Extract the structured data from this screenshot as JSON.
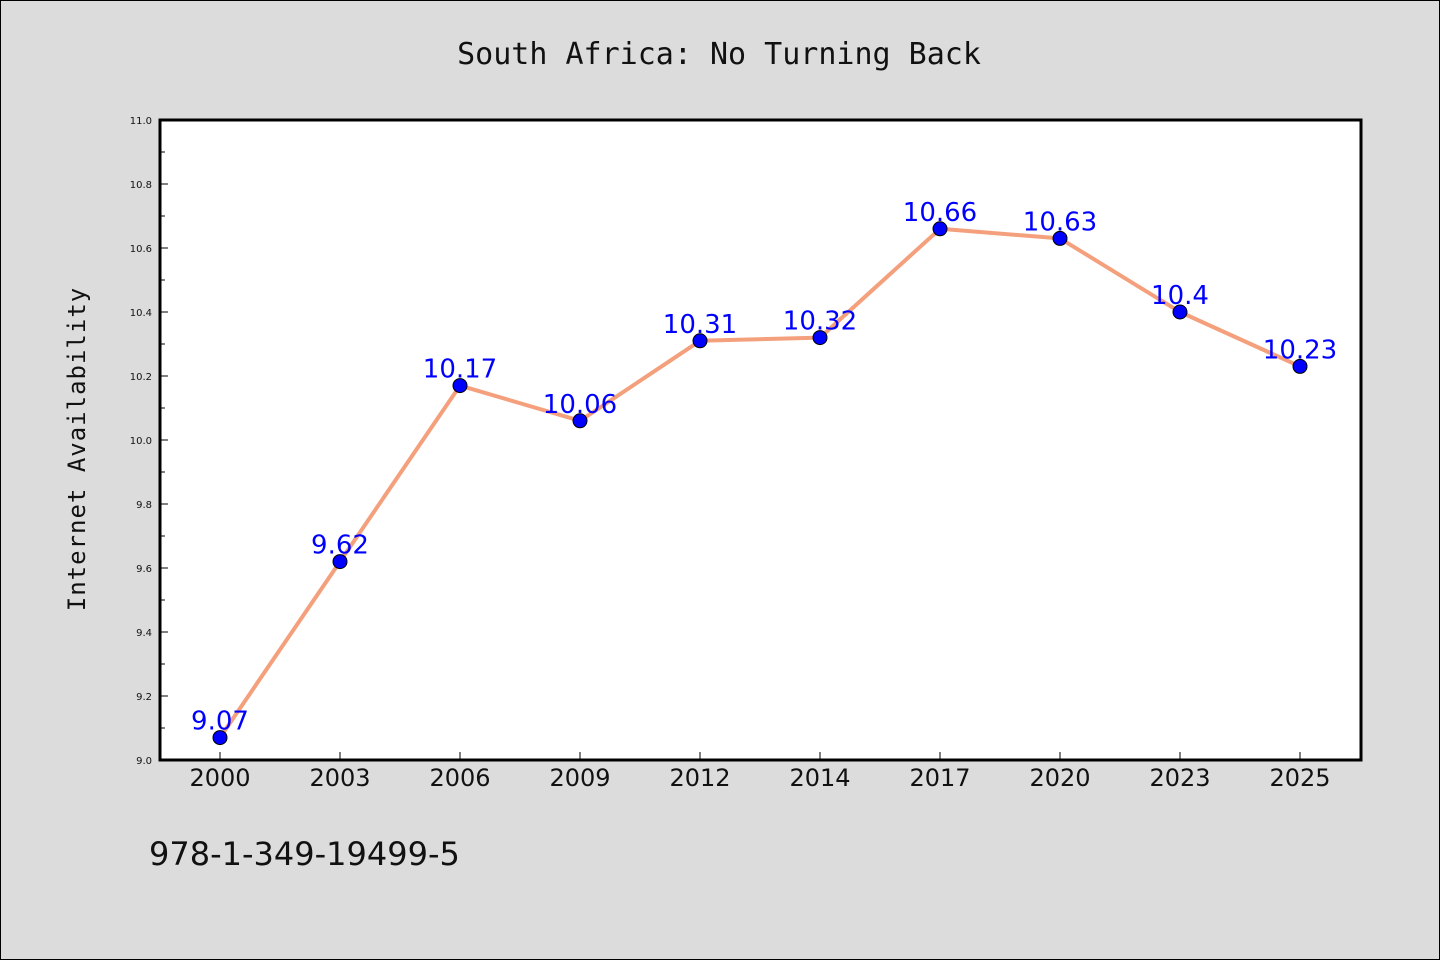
{
  "chart_data": {
    "type": "line",
    "title": "South Africa: No Turning Back",
    "ylabel": "Internet Availability",
    "xlabel": "",
    "categories": [
      "2000",
      "2003",
      "2006",
      "2009",
      "2012",
      "2014",
      "2017",
      "2020",
      "2023",
      "2025"
    ],
    "series": [
      {
        "values": [
          9.07,
          9.62,
          10.17,
          10.06,
          10.31,
          10.32,
          10.66,
          10.63,
          10.4,
          10.23
        ]
      }
    ],
    "data_labels": [
      "9.07",
      "9.62",
      "10.17",
      "10.06",
      "10.31",
      "10.32",
      "10.66",
      "10.63",
      "10.4",
      "10.23"
    ],
    "ylim": [
      9.0,
      11.0
    ],
    "yticks": [
      "9.0",
      "9.2",
      "9.4",
      "9.6",
      "9.8",
      "10.0",
      "10.2",
      "10.4",
      "10.6",
      "10.8",
      "11.0"
    ],
    "grid": false,
    "legend": "none",
    "line_color": "#f4a07c",
    "marker_color": "#0000ff",
    "label_color": "#0000ff",
    "plot_background": "#ffffff",
    "figure_background": "#dcdcdc"
  },
  "footer": {
    "isbn": "978-1-349-19499-5"
  }
}
